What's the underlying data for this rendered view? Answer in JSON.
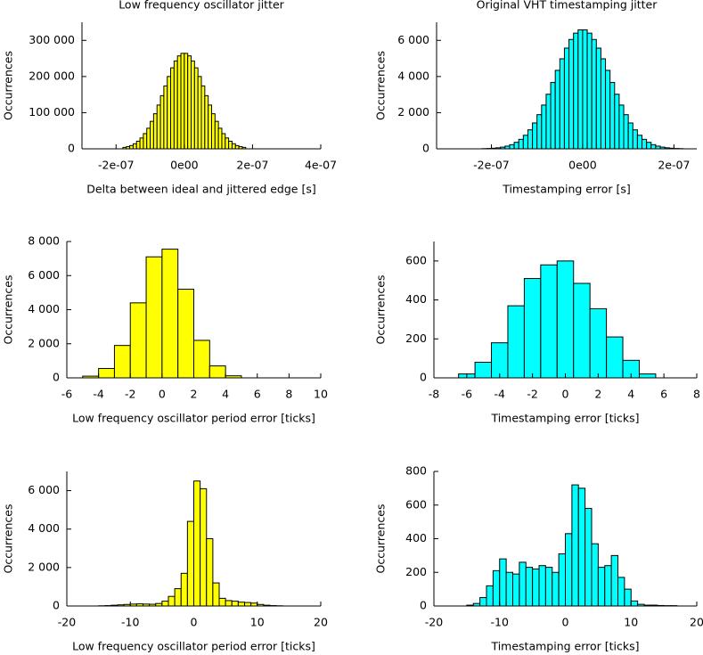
{
  "chart_data": [
    {
      "type": "histogram",
      "title": "Low frequency oscillator jitter",
      "xlabel": "Delta between ideal and jittered edge [s]",
      "ylabel": "Occurrences",
      "color": "#ffff00",
      "bins": [
        -1.8e-07,
        -1.7e-07,
        -1.6e-07,
        -1.5e-07,
        -1.4e-07,
        -1.3e-07,
        -1.2e-07,
        -1.1e-07,
        -1e-07,
        -9e-08,
        -8e-08,
        -7e-08,
        -6e-08,
        -5e-08,
        -4e-08,
        -3e-08,
        -2e-08,
        -1e-08,
        0,
        1e-08,
        2e-08,
        3e-08,
        4e-08,
        5e-08,
        6e-08,
        7e-08,
        8e-08,
        9e-08,
        1e-07,
        1.1e-07,
        1.2e-07,
        1.3e-07,
        1.4e-07,
        1.5e-07,
        1.6e-07,
        1.7e-07,
        1.8e-07
      ],
      "counts": [
        4000,
        6000,
        9000,
        14000,
        21000,
        30000,
        42000,
        57000,
        76000,
        97000,
        121000,
        147000,
        174000,
        200000,
        224000,
        243000,
        257000,
        264000,
        264000,
        257000,
        243000,
        224000,
        200000,
        174000,
        147000,
        121000,
        97000,
        76000,
        57000,
        42000,
        30000,
        21000,
        14000,
        9000,
        6000,
        4000
      ],
      "xlim": [
        -3e-07,
        4e-07
      ],
      "ylim": [
        0,
        350000
      ],
      "xticks": [
        {
          "value": -2e-07,
          "label": "-2e-07"
        },
        {
          "value": 0,
          "label": "0e00"
        },
        {
          "value": 2e-07,
          "label": "2e-07"
        },
        {
          "value": 4e-07,
          "label": "4e-07"
        }
      ],
      "yticks": [
        0,
        {
          "value": 100000,
          "label": "100 000"
        },
        {
          "value": 200000,
          "label": "200 000"
        },
        {
          "value": 300000,
          "label": "300 000"
        }
      ]
    },
    {
      "type": "histogram",
      "title": "Original VHT timestamping jitter",
      "xlabel": "Timestamping error [s]",
      "ylabel": "Occurrences",
      "color": "#00ffff",
      "bins": [
        -2.2e-07,
        -2.1e-07,
        -2e-07,
        -1.9e-07,
        -1.8e-07,
        -1.7e-07,
        -1.6e-07,
        -1.5e-07,
        -1.4e-07,
        -1.3e-07,
        -1.2e-07,
        -1.1e-07,
        -1e-07,
        -9e-08,
        -8e-08,
        -7e-08,
        -6e-08,
        -5e-08,
        -4e-08,
        -3e-08,
        -2e-08,
        -1e-08,
        0,
        1e-08,
        2e-08,
        3e-08,
        4e-08,
        5e-08,
        6e-08,
        7e-08,
        8e-08,
        9e-08,
        1e-07,
        1.1e-07,
        1.2e-07,
        1.3e-07,
        1.4e-07,
        1.5e-07,
        1.6e-07,
        1.7e-07,
        1.8e-07,
        1.9e-07,
        2e-07,
        2.1e-07,
        2.2e-07
      ],
      "counts": [
        11,
        19,
        34,
        57,
        94,
        150,
        230,
        360,
        525,
        750,
        1050,
        1430,
        1890,
        2420,
        3020,
        3670,
        4340,
        4980,
        5570,
        6050,
        6400,
        6580,
        6580,
        6400,
        6050,
        5570,
        4980,
        4340,
        3670,
        3020,
        2420,
        1890,
        1430,
        1050,
        750,
        525,
        360,
        230,
        150,
        94,
        57,
        34,
        19,
        11
      ],
      "xlim": [
        -3.2e-07,
        2.5e-07
      ],
      "ylim": [
        0,
        7000
      ],
      "xticks": [
        {
          "value": -2e-07,
          "label": "-2e-07"
        },
        {
          "value": 0,
          "label": "0e00"
        },
        {
          "value": 2e-07,
          "label": "2e-07"
        }
      ],
      "yticks": [
        0,
        {
          "value": 2000,
          "label": "2 000"
        },
        {
          "value": 4000,
          "label": "4 000"
        },
        {
          "value": 6000,
          "label": "6 000"
        }
      ]
    },
    {
      "type": "histogram",
      "xlabel": "Low frequency oscillator period error [ticks]",
      "ylabel": "Occurrences",
      "color": "#ffff00",
      "bins": [
        -5,
        -4,
        -3,
        -2,
        -1,
        0,
        1,
        2,
        3,
        4,
        5
      ],
      "counts": [
        100,
        550,
        1900,
        4400,
        7100,
        7550,
        5200,
        2200,
        700,
        120
      ],
      "xlim": [
        -6,
        10
      ],
      "ylim": [
        0,
        8000
      ],
      "xticks": [
        -6,
        -4,
        -2,
        0,
        2,
        4,
        6,
        8,
        10
      ],
      "yticks": [
        0,
        {
          "value": 2000,
          "label": "2 000"
        },
        {
          "value": 4000,
          "label": "4 000"
        },
        {
          "value": 6000,
          "label": "6 000"
        },
        {
          "value": 8000,
          "label": "8 000"
        }
      ]
    },
    {
      "type": "histogram",
      "xlabel": "Timestamping error [ticks]",
      "ylabel": "Occurrences",
      "color": "#00ffff",
      "bins": [
        -6.5,
        -5.5,
        -4.5,
        -3.5,
        -2.5,
        -1.5,
        -0.5,
        0.5,
        1.5,
        2.5,
        3.5,
        4.5,
        5.5
      ],
      "counts": [
        20,
        80,
        180,
        370,
        510,
        580,
        600,
        485,
        355,
        210,
        90,
        20
      ],
      "xlim": [
        -8,
        8
      ],
      "ylim": [
        0,
        700
      ],
      "xticks": [
        -8,
        -6,
        -4,
        -2,
        0,
        2,
        4,
        6,
        8
      ],
      "yticks": [
        0,
        200,
        400,
        600
      ]
    },
    {
      "type": "histogram",
      "xlabel": "Low frequency oscillator period error [ticks]",
      "ylabel": "Occurrences",
      "color": "#ffff00",
      "bins": [
        -15,
        -14,
        -13,
        -12,
        -11,
        -10,
        -9,
        -8,
        -7,
        -6,
        -5,
        -4,
        -3,
        -2,
        -1,
        0,
        1,
        2,
        3,
        4,
        5,
        6,
        7,
        8,
        9,
        10,
        11,
        12,
        13,
        14
      ],
      "counts": [
        10,
        20,
        40,
        60,
        80,
        100,
        110,
        100,
        90,
        130,
        250,
        500,
        900,
        1700,
        4400,
        6500,
        6100,
        3500,
        1200,
        400,
        280,
        250,
        200,
        180,
        150,
        80,
        40,
        20,
        10
      ],
      "xlim": [
        -20,
        20
      ],
      "ylim": [
        0,
        7000
      ],
      "xticks": [
        -20,
        -10,
        0,
        10,
        20
      ],
      "yticks": [
        0,
        {
          "value": 2000,
          "label": "2 000"
        },
        {
          "value": 4000,
          "label": "4 000"
        },
        {
          "value": 6000,
          "label": "6 000"
        }
      ]
    },
    {
      "type": "histogram",
      "xlabel": "Timestamping error [ticks]",
      "ylabel": "Occurrences",
      "color": "#00ffff",
      "bins": [
        -15,
        -14,
        -13,
        -12,
        -11,
        -10,
        -9,
        -8,
        -7,
        -6,
        -5,
        -4,
        -3,
        -2,
        -1,
        0,
        1,
        2,
        3,
        4,
        5,
        6,
        7,
        8,
        9,
        10,
        11,
        12,
        13,
        14,
        15,
        16,
        17
      ],
      "counts": [
        5,
        15,
        50,
        120,
        210,
        280,
        200,
        190,
        260,
        230,
        220,
        240,
        230,
        200,
        310,
        430,
        720,
        700,
        580,
        370,
        230,
        240,
        300,
        170,
        100,
        30,
        10,
        5,
        5,
        3,
        2,
        2
      ],
      "xlim": [
        -20,
        20
      ],
      "ylim": [
        0,
        800
      ],
      "xticks": [
        -20,
        -10,
        0,
        10,
        20
      ],
      "yticks": [
        0,
        200,
        400,
        600,
        800
      ]
    }
  ]
}
